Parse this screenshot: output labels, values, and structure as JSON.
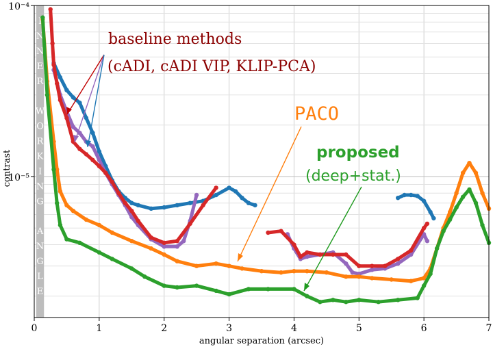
{
  "chart_data": {
    "type": "line",
    "xlabel": "angular separation (arcsec)",
    "ylabel": "contrast",
    "xlim": [
      0,
      7
    ],
    "ylim": [
      1.5e-06,
      0.0001
    ],
    "yscale": "log",
    "grid": true,
    "xticks": [
      "0",
      "1",
      "2",
      "3",
      "4",
      "5",
      "6",
      "7"
    ],
    "yticks": [
      {
        "value": 1e-05,
        "label": "10⁻⁵"
      },
      {
        "value": 0.0001,
        "label": "10⁻⁴"
      }
    ],
    "inner_working_angle": {
      "label": "INNER WORKING ANGLE",
      "x_end": 0.15
    },
    "series": [
      {
        "name": "cADI",
        "color": "#1f77b4",
        "points": [
          [
            0.3,
            4.6e-05
          ],
          [
            0.4,
            3.8e-05
          ],
          [
            0.5,
            3.2e-05
          ],
          [
            0.6,
            2.9e-05
          ],
          [
            0.7,
            2.7e-05
          ],
          [
            0.8,
            2.2e-05
          ],
          [
            0.9,
            1.8e-05
          ],
          [
            1.0,
            1.4e-05
          ],
          [
            1.1,
            1.15e-05
          ],
          [
            1.2,
            9.5e-06
          ],
          [
            1.3,
            8.2e-06
          ],
          [
            1.4,
            7.5e-06
          ],
          [
            1.5,
            7e-06
          ],
          [
            1.6,
            6.8e-06
          ],
          [
            1.8,
            6.5e-06
          ],
          [
            2.0,
            6.6e-06
          ],
          [
            2.2,
            6.8e-06
          ],
          [
            2.4,
            7e-06
          ],
          [
            2.6,
            7.2e-06
          ],
          [
            2.8,
            7.8e-06
          ],
          [
            3.0,
            8.6e-06
          ],
          [
            3.1,
            8.2e-06
          ],
          [
            3.2,
            7.5e-06
          ],
          [
            3.3,
            7e-06
          ],
          [
            3.4,
            6.8e-06
          ]
        ]
      },
      {
        "name": "cADI",
        "color": "#1f77b4",
        "points": [
          [
            5.6,
            7.5e-06
          ],
          [
            5.7,
            7.8e-06
          ],
          [
            5.8,
            7.8e-06
          ],
          [
            5.9,
            7.7e-06
          ],
          [
            6.0,
            7.2e-06
          ],
          [
            6.1,
            6.2e-06
          ],
          [
            6.15,
            5.7e-06
          ]
        ]
      },
      {
        "name": "cADI VIP",
        "color": "#9467bd",
        "points": [
          [
            0.3,
            4.2e-05
          ],
          [
            0.4,
            3e-05
          ],
          [
            0.5,
            2.4e-05
          ],
          [
            0.6,
            1.95e-05
          ],
          [
            0.7,
            1.8e-05
          ],
          [
            0.8,
            1.6e-05
          ],
          [
            0.9,
            1.5e-05
          ],
          [
            1.0,
            1.25e-05
          ],
          [
            1.1,
            1.05e-05
          ],
          [
            1.2,
            9e-06
          ],
          [
            1.3,
            7.8e-06
          ],
          [
            1.4,
            6.8e-06
          ],
          [
            1.5,
            5.8e-06
          ],
          [
            1.6,
            5.2e-06
          ],
          [
            1.8,
            4.3e-06
          ],
          [
            2.0,
            3.9e-06
          ],
          [
            2.2,
            3.9e-06
          ],
          [
            2.3,
            4.2e-06
          ],
          [
            2.4,
            5.5e-06
          ],
          [
            2.5,
            7.8e-06
          ]
        ]
      },
      {
        "name": "cADI VIP",
        "color": "#9467bd",
        "points": [
          [
            3.9,
            4.6e-06
          ],
          [
            4.0,
            3.8e-06
          ],
          [
            4.1,
            3.3e-06
          ],
          [
            4.2,
            3.4e-06
          ],
          [
            4.4,
            3.5e-06
          ],
          [
            4.6,
            3.6e-06
          ],
          [
            4.8,
            3.1e-06
          ],
          [
            4.9,
            2.75e-06
          ],
          [
            5.0,
            2.7e-06
          ],
          [
            5.2,
            2.85e-06
          ],
          [
            5.4,
            2.9e-06
          ],
          [
            5.6,
            3.1e-06
          ],
          [
            5.8,
            3.5e-06
          ],
          [
            6.0,
            4.6e-06
          ],
          [
            6.05,
            4.2e-06
          ]
        ]
      },
      {
        "name": "KLIP-PCA",
        "color": "#d62728",
        "points": [
          [
            0.25,
            9.5e-05
          ],
          [
            0.28,
            6e-05
          ],
          [
            0.3,
            4.5e-05
          ],
          [
            0.35,
            3.5e-05
          ],
          [
            0.4,
            2.8e-05
          ],
          [
            0.5,
            2.2e-05
          ],
          [
            0.6,
            1.6e-05
          ],
          [
            0.7,
            1.45e-05
          ],
          [
            0.8,
            1.35e-05
          ],
          [
            0.9,
            1.25e-05
          ],
          [
            1.0,
            1.15e-05
          ],
          [
            1.1,
            1.05e-05
          ],
          [
            1.2,
            9.3e-06
          ],
          [
            1.3,
            8e-06
          ],
          [
            1.4,
            7e-06
          ],
          [
            1.5,
            6.3e-06
          ],
          [
            1.6,
            5.5e-06
          ],
          [
            1.8,
            4.4e-06
          ],
          [
            2.0,
            4.1e-06
          ],
          [
            2.2,
            4.2e-06
          ],
          [
            2.4,
            5.3e-06
          ],
          [
            2.6,
            6.8e-06
          ],
          [
            2.8,
            8.6e-06
          ]
        ]
      },
      {
        "name": "KLIP-PCA",
        "color": "#d62728",
        "points": [
          [
            3.6,
            4.7e-06
          ],
          [
            3.8,
            4.8e-06
          ],
          [
            4.0,
            4e-06
          ],
          [
            4.1,
            3.4e-06
          ],
          [
            4.2,
            3.6e-06
          ],
          [
            4.4,
            3.5e-06
          ],
          [
            4.6,
            3.5e-06
          ],
          [
            4.8,
            3.5e-06
          ],
          [
            5.0,
            3e-06
          ],
          [
            5.2,
            3e-06
          ],
          [
            5.4,
            3e-06
          ],
          [
            5.6,
            3.3e-06
          ],
          [
            5.8,
            3.7e-06
          ],
          [
            6.0,
            5e-06
          ],
          [
            6.05,
            5.3e-06
          ]
        ]
      },
      {
        "name": "PACO",
        "color": "#ff7f0e",
        "points": [
          [
            0.13,
            8.3e-05
          ],
          [
            0.2,
            3.6e-05
          ],
          [
            0.3,
            1.6e-05
          ],
          [
            0.35,
            1.1e-05
          ],
          [
            0.4,
            8.2e-06
          ],
          [
            0.5,
            6.8e-06
          ],
          [
            0.6,
            6.3e-06
          ],
          [
            0.8,
            5.6e-06
          ],
          [
            1.0,
            5.2e-06
          ],
          [
            1.2,
            4.7e-06
          ],
          [
            1.5,
            4.2e-06
          ],
          [
            1.8,
            3.8e-06
          ],
          [
            2.0,
            3.5e-06
          ],
          [
            2.2,
            3.2e-06
          ],
          [
            2.5,
            3e-06
          ],
          [
            2.8,
            3.1e-06
          ],
          [
            3.0,
            3e-06
          ],
          [
            3.2,
            2.9e-06
          ],
          [
            3.5,
            2.8e-06
          ],
          [
            3.8,
            2.75e-06
          ],
          [
            4.0,
            2.8e-06
          ],
          [
            4.2,
            2.8e-06
          ],
          [
            4.5,
            2.75e-06
          ],
          [
            4.8,
            2.6e-06
          ],
          [
            5.0,
            2.6e-06
          ],
          [
            5.2,
            2.55e-06
          ],
          [
            5.5,
            2.5e-06
          ],
          [
            5.8,
            2.45e-06
          ],
          [
            6.0,
            2.55e-06
          ],
          [
            6.1,
            2.9e-06
          ],
          [
            6.2,
            3.8e-06
          ],
          [
            6.3,
            5e-06
          ],
          [
            6.4,
            6.2e-06
          ],
          [
            6.5,
            8e-06
          ],
          [
            6.6,
            1.05e-05
          ],
          [
            6.7,
            1.2e-05
          ],
          [
            6.8,
            1.05e-05
          ],
          [
            6.9,
            8e-06
          ],
          [
            7.0,
            6.5e-06
          ]
        ]
      },
      {
        "name": "proposed (deep+stat.)",
        "color": "#2ca02c",
        "points": [
          [
            0.13,
            8.5e-05
          ],
          [
            0.2,
            3e-05
          ],
          [
            0.3,
            1.1e-05
          ],
          [
            0.35,
            7e-06
          ],
          [
            0.4,
            5.2e-06
          ],
          [
            0.5,
            4.3e-06
          ],
          [
            0.7,
            4.1e-06
          ],
          [
            1.0,
            3.6e-06
          ],
          [
            1.2,
            3.3e-06
          ],
          [
            1.5,
            2.9e-06
          ],
          [
            1.7,
            2.6e-06
          ],
          [
            2.0,
            2.3e-06
          ],
          [
            2.2,
            2.25e-06
          ],
          [
            2.5,
            2.3e-06
          ],
          [
            2.8,
            2.15e-06
          ],
          [
            3.0,
            2.05e-06
          ],
          [
            3.3,
            2.2e-06
          ],
          [
            3.6,
            2.2e-06
          ],
          [
            4.0,
            2.2e-06
          ],
          [
            4.2,
            2e-06
          ],
          [
            4.4,
            1.85e-06
          ],
          [
            4.6,
            1.9e-06
          ],
          [
            4.8,
            1.85e-06
          ],
          [
            5.0,
            1.9e-06
          ],
          [
            5.3,
            1.85e-06
          ],
          [
            5.6,
            1.9e-06
          ],
          [
            5.9,
            1.95e-06
          ],
          [
            6.0,
            2.3e-06
          ],
          [
            6.1,
            2.7e-06
          ],
          [
            6.2,
            3.8e-06
          ],
          [
            6.3,
            4.8e-06
          ],
          [
            6.4,
            5.6e-06
          ],
          [
            6.5,
            6.6e-06
          ],
          [
            6.6,
            7.6e-06
          ],
          [
            6.7,
            8.4e-06
          ],
          [
            6.8,
            7e-06
          ],
          [
            6.9,
            5.2e-06
          ],
          [
            7.0,
            4.1e-06
          ]
        ]
      }
    ],
    "annotations": [
      {
        "text": "baseline methods",
        "color": "#8b0000"
      },
      {
        "text": "(cADI, cADI VIP, KLIP-PCA)",
        "color": "#8b0000"
      },
      {
        "text": "PACO",
        "color": "#ff7f0e"
      },
      {
        "text": "proposed",
        "color": "#2ca02c"
      },
      {
        "text": "(deep+stat.)",
        "color": "#2ca02c"
      }
    ]
  }
}
